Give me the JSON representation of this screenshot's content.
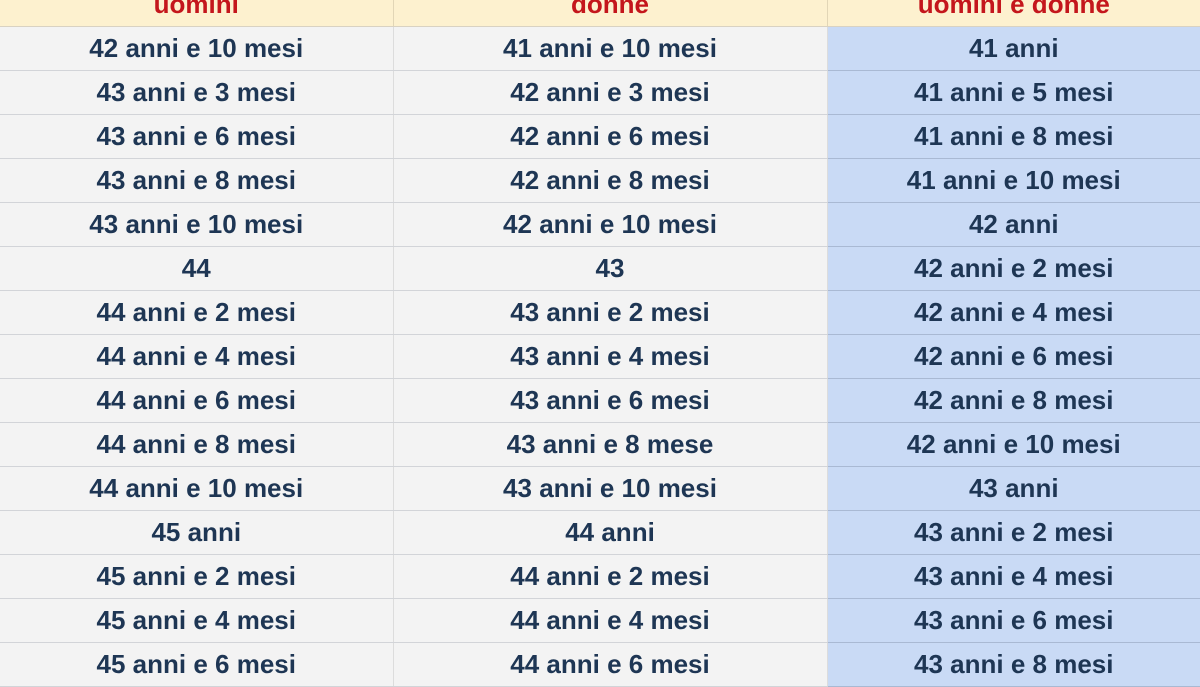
{
  "table": {
    "headers": [
      "uomini",
      "donne",
      "uomini e donne"
    ],
    "rows": [
      [
        "42 anni e 10 mesi",
        "41 anni e 10 mesi",
        "41 anni"
      ],
      [
        "43 anni e 3 mesi",
        "42 anni e 3 mesi",
        "41 anni e 5 mesi"
      ],
      [
        "43 anni e 6 mesi",
        "42 anni e 6 mesi",
        "41 anni e 8 mesi"
      ],
      [
        "43 anni e 8 mesi",
        "42 anni e 8 mesi",
        "41 anni e 10 mesi"
      ],
      [
        "43 anni e 10 mesi",
        "42 anni e 10 mesi",
        "42 anni"
      ],
      [
        "44",
        "43",
        "42 anni e 2 mesi"
      ],
      [
        "44 anni e 2 mesi",
        "43 anni e 2 mesi",
        "42 anni e 4 mesi"
      ],
      [
        "44 anni e 4 mesi",
        "43 anni e 4 mesi",
        "42 anni e 6 mesi"
      ],
      [
        "44 anni e 6 mesi",
        "43 anni e 6 mesi",
        "42 anni e 8 mesi"
      ],
      [
        "44 anni e 8 mesi",
        "43 anni e 8 mese",
        "42 anni e 10 mesi"
      ],
      [
        "44 anni e 10 mesi",
        "43 anni e 10 mesi",
        "43 anni"
      ],
      [
        "45 anni",
        "44 anni",
        "43 anni e 2 mesi"
      ],
      [
        "45 anni e 2 mesi",
        "44 anni e 2 mesi",
        "43 anni e 4 mesi"
      ],
      [
        "45 anni e 4 mesi",
        "44 anni e 4 mesi",
        "43 anni e 6 mesi"
      ],
      [
        "45 anni e 6 mesi",
        "44 anni e 6 mesi",
        "43 anni e 8 mesi"
      ]
    ]
  },
  "colors": {
    "header_bg": "#fdf1cf",
    "header_text": "#c4161c",
    "cell_bg": "#f3f3f3",
    "cell_text": "#1e3654",
    "highlight_column_bg": "#c9daf5"
  }
}
